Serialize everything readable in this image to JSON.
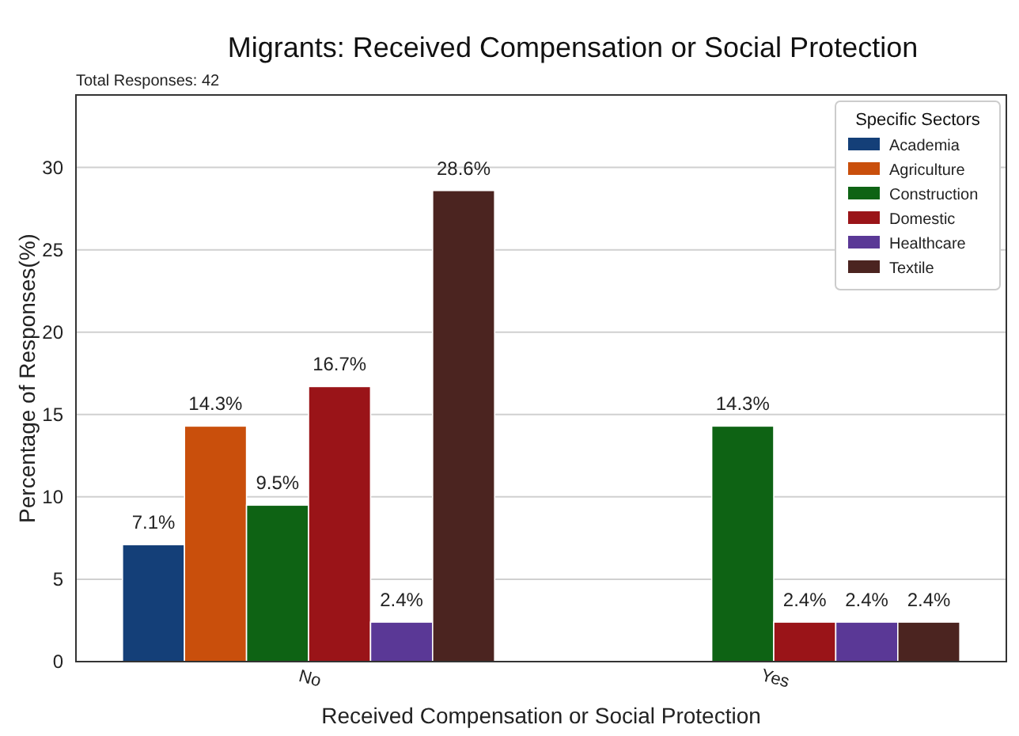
{
  "chart_data": {
    "type": "bar",
    "title": "Migrants: Received Compensation or Social Protection",
    "xlabel": "Received Compensation or Social Protection",
    "ylabel": "Percentage of Responses(%)",
    "legend_title": "Specific Sectors",
    "annotations": [
      "Total Responses: 42"
    ],
    "categories": [
      "No",
      "Yes"
    ],
    "series": [
      {
        "name": "Academia",
        "color": "#143f78",
        "values": [
          7.1,
          null
        ],
        "value_labels": [
          "7.1%",
          null
        ]
      },
      {
        "name": "Agriculture",
        "color": "#c94f0c",
        "values": [
          14.3,
          null
        ],
        "value_labels": [
          "14.3%",
          null
        ]
      },
      {
        "name": "Construction",
        "color": "#0e6314",
        "values": [
          9.5,
          14.3
        ],
        "value_labels": [
          "9.5%",
          "14.3%"
        ]
      },
      {
        "name": "Domestic",
        "color": "#9a1418",
        "values": [
          16.7,
          2.4
        ],
        "value_labels": [
          "16.7%",
          "2.4%"
        ]
      },
      {
        "name": "Healthcare",
        "color": "#5a3896",
        "values": [
          2.4,
          2.4
        ],
        "value_labels": [
          "2.4%",
          "2.4%"
        ]
      },
      {
        "name": "Textile",
        "color": "#4b2420",
        "values": [
          28.6,
          2.4
        ],
        "value_labels": [
          "28.6%",
          "2.4%"
        ]
      }
    ],
    "ylim": [
      0,
      34.4
    ],
    "yticks": [
      0,
      5,
      10,
      15,
      20,
      25,
      30
    ],
    "grid": "y",
    "legend": "top right"
  }
}
